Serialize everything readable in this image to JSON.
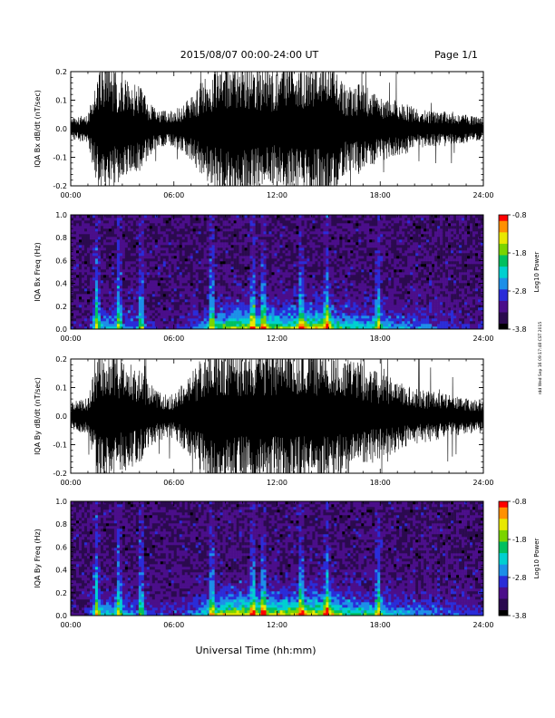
{
  "header": {
    "title": "2015/08/07   00:00-24:00 UT",
    "page": "Page 1/1"
  },
  "footer": {
    "xlabel": "Universal Time (hh:mm)",
    "stamp": "rdd Wed Sep 16 09:17:48 CST 2015"
  },
  "colors": {
    "trace": "#000000",
    "spectrogram_background": "#1a0a2e",
    "colormap": [
      "#000000",
      "#2b0a4f",
      "#4b0e8a",
      "#2a2cd8",
      "#1c8fe8",
      "#00d0d0",
      "#00c060",
      "#7ad400",
      "#e8e800",
      "#ff9000",
      "#ff0000"
    ]
  },
  "chart_data": [
    {
      "type": "line",
      "station": "IQA",
      "component": "Bx",
      "ylabel": "IQA Bx dB/dt (nT/sec)",
      "ylim": [
        -0.2,
        0.2
      ],
      "yticks": [
        -0.2,
        -0.1,
        0.0,
        0.1,
        0.2
      ],
      "ytick_labels": [
        "-0.2",
        "-0.1",
        "0.0",
        "0.1",
        "0.2"
      ],
      "xlim": [
        0,
        24
      ],
      "xticks": [
        0,
        6,
        12,
        18,
        24
      ],
      "xtick_labels": [
        "00:00",
        "06:00",
        "12:00",
        "18:00",
        "24:00"
      ],
      "x_unit": "hour UT",
      "amplitude_envelope": {
        "x": [
          0,
          1,
          1.7,
          2,
          3,
          4,
          5,
          6,
          7,
          8,
          9,
          10,
          11,
          12,
          13,
          14,
          15,
          16,
          17,
          18,
          19,
          20,
          21,
          22,
          23,
          24
        ],
        "y": [
          0.03,
          0.04,
          0.2,
          0.2,
          0.14,
          0.12,
          0.05,
          0.05,
          0.09,
          0.16,
          0.2,
          0.2,
          0.18,
          0.16,
          0.2,
          0.2,
          0.2,
          0.12,
          0.13,
          0.09,
          0.08,
          0.06,
          0.05,
          0.05,
          0.04,
          0.03
        ]
      }
    },
    {
      "type": "heatmap",
      "station": "IQA",
      "component": "Bx",
      "ylabel": "IQA Bx Freq (Hz)",
      "ylim": [
        0,
        1
      ],
      "yticks": [
        0,
        0.2,
        0.4,
        0.6,
        0.8,
        1.0
      ],
      "ytick_labels": [
        "0.0",
        "0.2",
        "0.4",
        "0.6",
        "0.8",
        "1.0"
      ],
      "xlim": [
        0,
        24
      ],
      "xticks": [
        0,
        6,
        12,
        18,
        24
      ],
      "xtick_labels": [
        "00:00",
        "06:00",
        "12:00",
        "18:00",
        "24:00"
      ],
      "colorbar": {
        "label": "Log10 Power",
        "range": [
          -3.8,
          -0.8
        ],
        "ticks": [
          -0.8,
          -1.8,
          -2.8,
          -3.8
        ],
        "tick_labels": [
          "-0.8",
          "-1.8",
          "-2.8",
          "-3.8"
        ]
      },
      "activity": {
        "x": [
          0,
          1,
          1.7,
          2,
          3,
          4,
          5,
          6,
          7,
          8,
          9,
          10,
          11,
          12,
          13,
          14,
          15,
          16,
          17,
          18,
          19,
          20,
          21,
          22,
          23,
          24
        ],
        "level": [
          0.05,
          0.1,
          0.5,
          0.4,
          0.35,
          0.3,
          0.1,
          0.1,
          0.2,
          0.45,
          0.7,
          0.8,
          0.75,
          0.7,
          0.75,
          0.85,
          0.8,
          0.55,
          0.5,
          0.45,
          0.35,
          0.3,
          0.25,
          0.2,
          0.15,
          0.1
        ]
      },
      "bursts_hours": [
        1.5,
        2.8,
        4.1,
        8.2,
        10.6,
        11.2,
        13.4,
        14.9,
        17.9
      ]
    },
    {
      "type": "line",
      "station": "IQA",
      "component": "By",
      "ylabel": "IQA By dB/dt (nT/sec)",
      "ylim": [
        -0.2,
        0.2
      ],
      "yticks": [
        -0.2,
        -0.1,
        0.0,
        0.1,
        0.2
      ],
      "ytick_labels": [
        "-0.2",
        "-0.1",
        "0.0",
        "0.1",
        "0.2"
      ],
      "xlim": [
        0,
        24
      ],
      "xticks": [
        0,
        6,
        12,
        18,
        24
      ],
      "xtick_labels": [
        "00:00",
        "06:00",
        "12:00",
        "18:00",
        "24:00"
      ],
      "x_unit": "hour UT",
      "amplitude_envelope": {
        "x": [
          0,
          1,
          1.7,
          2,
          3,
          4,
          5,
          6,
          7,
          8,
          9,
          10,
          11,
          12,
          13,
          14,
          15,
          16,
          17,
          18,
          19,
          20,
          21,
          22,
          23,
          24
        ],
        "y": [
          0.04,
          0.05,
          0.2,
          0.2,
          0.16,
          0.13,
          0.07,
          0.06,
          0.12,
          0.2,
          0.2,
          0.2,
          0.2,
          0.2,
          0.2,
          0.2,
          0.2,
          0.16,
          0.15,
          0.12,
          0.1,
          0.08,
          0.07,
          0.06,
          0.05,
          0.05
        ]
      }
    },
    {
      "type": "heatmap",
      "station": "IQA",
      "component": "By",
      "ylabel": "IQA By Freq (Hz)",
      "ylim": [
        0,
        1
      ],
      "yticks": [
        0,
        0.2,
        0.4,
        0.6,
        0.8,
        1.0
      ],
      "ytick_labels": [
        "0.0",
        "0.2",
        "0.4",
        "0.6",
        "0.8",
        "1.0"
      ],
      "xlim": [
        0,
        24
      ],
      "xticks": [
        0,
        6,
        12,
        18,
        24
      ],
      "xtick_labels": [
        "00:00",
        "06:00",
        "12:00",
        "18:00",
        "24:00"
      ],
      "colorbar": {
        "label": "Log10 Power",
        "range": [
          -3.8,
          -0.8
        ],
        "ticks": [
          -0.8,
          -1.8,
          -2.8,
          -3.8
        ],
        "tick_labels": [
          "-0.8",
          "-1.8",
          "-2.8",
          "-3.8"
        ]
      },
      "activity": {
        "x": [
          0,
          1,
          1.7,
          2,
          3,
          4,
          5,
          6,
          7,
          8,
          9,
          10,
          11,
          12,
          13,
          14,
          15,
          16,
          17,
          18,
          19,
          20,
          21,
          22,
          23,
          24
        ],
        "level": [
          0.05,
          0.1,
          0.5,
          0.45,
          0.4,
          0.35,
          0.15,
          0.15,
          0.3,
          0.55,
          0.8,
          0.9,
          0.85,
          0.85,
          0.85,
          0.9,
          0.85,
          0.6,
          0.55,
          0.5,
          0.4,
          0.35,
          0.3,
          0.25,
          0.2,
          0.15
        ]
      },
      "bursts_hours": [
        1.5,
        2.8,
        4.1,
        8.2,
        10.6,
        11.2,
        13.4,
        14.9,
        17.9
      ]
    }
  ]
}
